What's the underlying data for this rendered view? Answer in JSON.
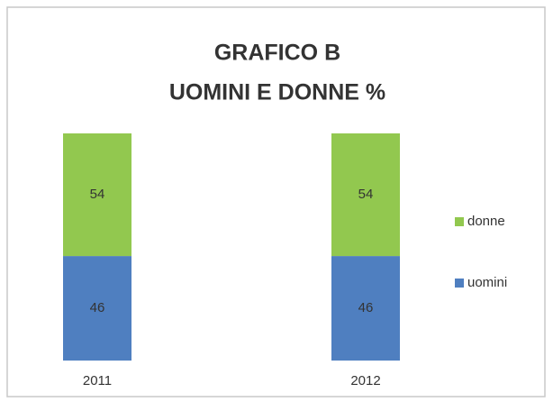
{
  "chart_data": {
    "type": "stacked-bar",
    "title": [
      "GRAFICO B",
      "UOMINI E DONNE %"
    ],
    "categories": [
      "2011",
      "2012"
    ],
    "series": [
      {
        "name": "uomini",
        "color": "#4f7fc0",
        "values": [
          46,
          46
        ]
      },
      {
        "name": "donne",
        "color": "#92c84f",
        "values": [
          54,
          54
        ]
      }
    ]
  }
}
